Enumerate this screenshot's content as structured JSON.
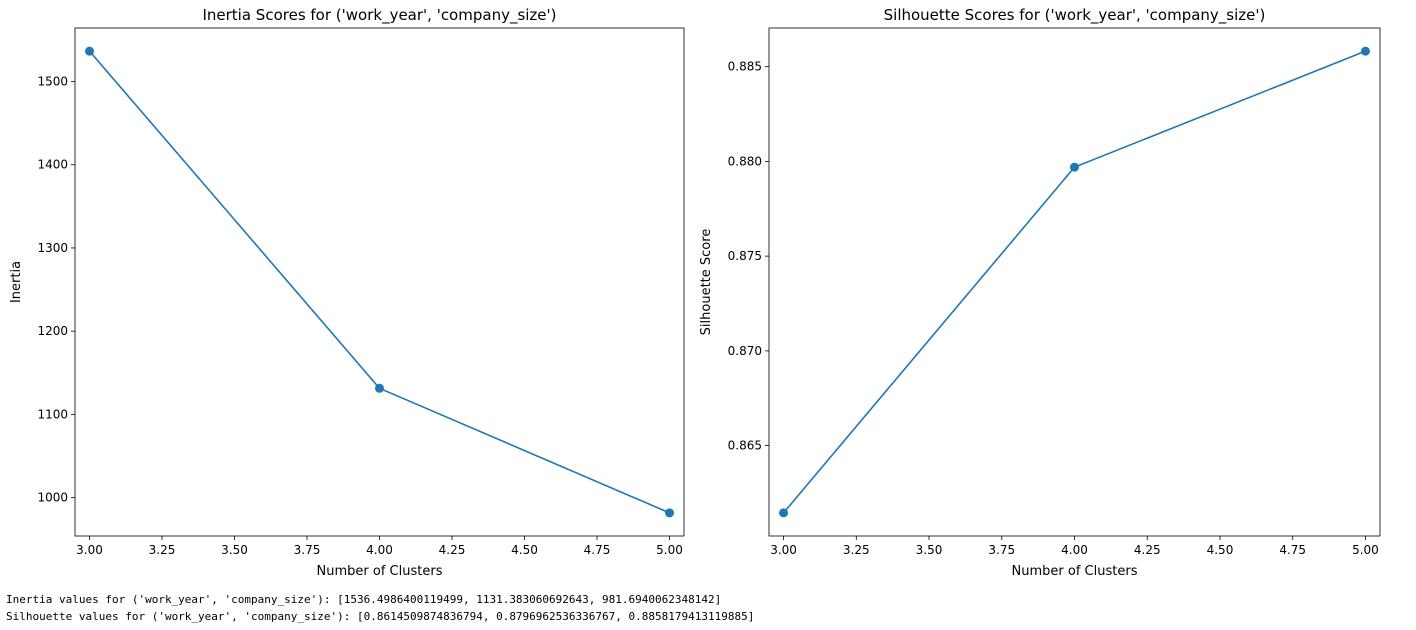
{
  "chart_data": [
    {
      "type": "line",
      "title": "Inertia Scores for ('work_year', 'company_size')",
      "xlabel": "Number of Clusters",
      "ylabel": "Inertia",
      "x": [
        3,
        4,
        5
      ],
      "series": [
        {
          "values": [
            1536.4986400119499,
            1131.383060692643,
            981.6940062348142
          ],
          "color": "#1f77b4",
          "marker": "circle"
        }
      ],
      "xlim": [
        2.95,
        5.05
      ],
      "ylim": [
        953.9,
        1564.3
      ],
      "xticks": [
        3.0,
        3.25,
        3.5,
        3.75,
        4.0,
        4.25,
        4.5,
        4.75,
        5.0
      ],
      "xtick_labels": [
        "3.00",
        "3.25",
        "3.50",
        "3.75",
        "4.00",
        "4.25",
        "4.50",
        "4.75",
        "5.00"
      ],
      "yticks": [
        1000,
        1100,
        1200,
        1300,
        1400,
        1500
      ],
      "ytick_labels": [
        "1000",
        "1100",
        "1200",
        "1300",
        "1400",
        "1500"
      ],
      "grid": false
    },
    {
      "type": "line",
      "title": "Silhouette Scores for ('work_year', 'company_size')",
      "xlabel": "Number of Clusters",
      "ylabel": "Silhouette Score",
      "x": [
        3,
        4,
        5
      ],
      "series": [
        {
          "values": [
            0.8614509874836794,
            0.8796962536336767,
            0.8858179413119885
          ],
          "color": "#1f77b4",
          "marker": "circle"
        }
      ],
      "xlim": [
        2.95,
        5.05
      ],
      "ylim": [
        0.86023,
        0.88704
      ],
      "xticks": [
        3.0,
        3.25,
        3.5,
        3.75,
        4.0,
        4.25,
        4.5,
        4.75,
        5.0
      ],
      "xtick_labels": [
        "3.00",
        "3.25",
        "3.50",
        "3.75",
        "4.00",
        "4.25",
        "4.50",
        "4.75",
        "5.00"
      ],
      "yticks": [
        0.865,
        0.87,
        0.875,
        0.88,
        0.885
      ],
      "ytick_labels": [
        "0.865",
        "0.870",
        "0.875",
        "0.880",
        "0.885"
      ],
      "grid": false
    }
  ],
  "output": {
    "inertia_line": "Inertia values for ('work_year', 'company_size'): [1536.4986400119499, 1131.383060692643, 981.6940062348142]",
    "silhouette_line": "Silhouette values for ('work_year', 'company_size'): [0.8614509874836794, 0.8796962536336767, 0.8858179413119885]"
  }
}
